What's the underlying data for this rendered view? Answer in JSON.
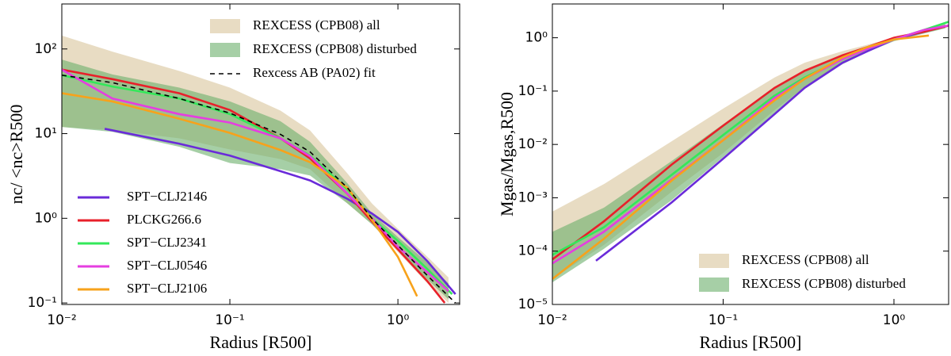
{
  "chart_data": [
    {
      "type": "line",
      "xlabel": "Radius  [R500]",
      "ylabel": "nc/ <nc>R500",
      "log_x": true,
      "log_y": true,
      "xlim": [
        0.01,
        2.33
      ],
      "ylim": [
        0.096,
        340
      ],
      "xticks": [
        {
          "value": 0.01,
          "label": "10⁻²"
        },
        {
          "value": 0.1,
          "label": "10⁻¹"
        },
        {
          "value": 1,
          "label": "10⁰"
        }
      ],
      "yticks": [
        {
          "value": 0.1,
          "label": "10⁻¹"
        },
        {
          "value": 1,
          "label": "10⁰"
        },
        {
          "value": 10,
          "label": "10¹"
        },
        {
          "value": 100,
          "label": "10²"
        }
      ],
      "legend": {
        "bands": "upper right",
        "lines": "lower left"
      },
      "bands": [
        {
          "name": "REXCESS (CPB08) all",
          "color": "#d9c49b",
          "x": [
            0.01,
            0.02,
            0.05,
            0.1,
            0.2,
            0.3,
            0.5,
            0.7,
            1,
            1.5,
            2
          ],
          "upper": [
            144,
            93,
            55,
            35,
            18.7,
            10.9,
            3.4,
            1.5,
            0.75,
            0.35,
            0.2
          ],
          "lower": [
            12,
            11,
            8.8,
            6.5,
            5,
            3.8,
            1.5,
            0.85,
            0.4,
            0.17,
            0.1
          ]
        },
        {
          "name": "REXCESS (CPB08) disturbed",
          "color": "#6aaf6a",
          "x": [
            0.01,
            0.02,
            0.05,
            0.1,
            0.2,
            0.3,
            0.5,
            0.7,
            1,
            1.5,
            2
          ],
          "upper": [
            75,
            50,
            35,
            24,
            14,
            8,
            2.6,
            1.15,
            0.6,
            0.3,
            0.17
          ],
          "lower": [
            12,
            10.5,
            7,
            4.5,
            3.8,
            3.2,
            1.5,
            0.85,
            0.42,
            0.19,
            0.11
          ]
        }
      ],
      "series": [
        {
          "name": "SPT−CLJ2146",
          "color": "#6a2bd9",
          "x": [
            0.018,
            0.05,
            0.1,
            0.2,
            0.3,
            0.5,
            0.7,
            1,
            1.5,
            2.2
          ],
          "values": [
            11.4,
            7.6,
            5.5,
            3.6,
            2.8,
            1.7,
            1.14,
            0.69,
            0.31,
            0.127
          ]
        },
        {
          "name": "PLCKG266.6",
          "color": "#e8202a",
          "x": [
            0.01,
            0.02,
            0.05,
            0.1,
            0.2,
            0.3,
            0.5,
            0.7,
            1,
            1.5,
            1.9
          ],
          "values": [
            57,
            44,
            30,
            19,
            8.8,
            5.1,
            1.95,
            0.92,
            0.43,
            0.18,
            0.1
          ]
        },
        {
          "name": "SPT−CLJ2341",
          "color": "#33e85a",
          "x": [
            0.01,
            0.02,
            0.05,
            0.1,
            0.2,
            0.3,
            0.5,
            0.7,
            1,
            1.5,
            2.1
          ],
          "values": [
            49,
            36,
            26,
            17,
            8.8,
            5.5,
            2.2,
            1.0,
            0.54,
            0.25,
            0.127
          ]
        },
        {
          "name": "SPT−CLJ0546",
          "color": "#e53ee0",
          "x": [
            0.01,
            0.02,
            0.05,
            0.1,
            0.2,
            0.3,
            0.5,
            0.7,
            1,
            1.5,
            2.0
          ],
          "values": [
            57,
            26,
            17,
            13.5,
            8.8,
            5.4,
            1.95,
            1.0,
            0.46,
            0.23,
            0.138
          ]
        },
        {
          "name": "SPT−CLJ2106",
          "color": "#f7a21b",
          "x": [
            0.01,
            0.02,
            0.05,
            0.1,
            0.2,
            0.3,
            0.5,
            0.7,
            1,
            1.3
          ],
          "values": [
            30,
            24,
            15,
            10.2,
            6.4,
            4.6,
            2.3,
            0.96,
            0.35,
            0.12
          ]
        },
        {
          "name": "Rexcess AB (PA02) fit",
          "color": "#000000",
          "dash": true,
          "x": [
            0.01,
            0.02,
            0.05,
            0.1,
            0.2,
            0.3,
            0.5,
            0.7,
            1,
            1.5,
            2.2
          ],
          "values": [
            49,
            40,
            26,
            17.5,
            9.8,
            6.1,
            2.3,
            1.0,
            0.48,
            0.21,
            0.1
          ]
        }
      ]
    },
    {
      "type": "line",
      "xlabel": "Radius  [R500]",
      "ylabel": "Mgas/Mgas,R500",
      "log_x": true,
      "log_y": true,
      "xlim": [
        0.01,
        2.09
      ],
      "ylim": [
        1e-05,
        4.3
      ],
      "xticks": [
        {
          "value": 0.01,
          "label": "10⁻²"
        },
        {
          "value": 0.1,
          "label": "10⁻¹"
        },
        {
          "value": 1,
          "label": "10⁰"
        }
      ],
      "yticks": [
        {
          "value": 1e-05,
          "label": "10⁻⁵"
        },
        {
          "value": 0.0001,
          "label": "10⁻⁴"
        },
        {
          "value": 0.001,
          "label": "10⁻³"
        },
        {
          "value": 0.01,
          "label": "10⁻²"
        },
        {
          "value": 0.1,
          "label": "10⁻¹"
        },
        {
          "value": 1,
          "label": "10⁰"
        }
      ],
      "legend": {
        "bands": "lower right"
      },
      "bands": [
        {
          "name": "REXCESS (CPB08) all",
          "color": "#d9c49b",
          "x": [
            0.01,
            0.02,
            0.05,
            0.1,
            0.2,
            0.3,
            0.5,
            0.7,
            1,
            1.5,
            2
          ],
          "upper": [
            0.00055,
            0.0018,
            0.0115,
            0.047,
            0.18,
            0.34,
            0.56,
            0.74,
            1.0,
            1.4,
            1.8
          ],
          "lower": [
            3e-05,
            0.00013,
            0.0013,
            0.0069,
            0.044,
            0.12,
            0.34,
            0.58,
            0.93,
            1.2,
            1.55
          ]
        },
        {
          "name": "REXCESS (CPB08) disturbed",
          "color": "#6aaf6a",
          "x": [
            0.01,
            0.02,
            0.05,
            0.1,
            0.2,
            0.3,
            0.5,
            0.7,
            1,
            1.5,
            2
          ],
          "upper": [
            0.00023,
            0.00065,
            0.0049,
            0.024,
            0.115,
            0.24,
            0.47,
            0.67,
            1.0,
            1.4,
            1.8
          ],
          "lower": [
            2.6e-05,
            0.00011,
            0.0009,
            0.0058,
            0.037,
            0.115,
            0.32,
            0.54,
            0.86,
            1.2,
            1.5
          ]
        }
      ],
      "series": [
        {
          "name": "SPT−CLJ2146",
          "color": "#6a2bd9",
          "x": [
            0.018,
            0.05,
            0.1,
            0.2,
            0.3,
            0.5,
            0.7,
            1,
            1.5,
            2.1
          ],
          "values": [
            6.6e-05,
            0.00082,
            0.0054,
            0.037,
            0.115,
            0.34,
            0.56,
            0.93,
            1.3,
            1.7
          ]
        },
        {
          "name": "PLCKG266.6",
          "color": "#e8202a",
          "x": [
            0.01,
            0.02,
            0.05,
            0.1,
            0.2,
            0.3,
            0.5,
            0.7,
            1,
            1.5,
            2.1
          ],
          "values": [
            7e-05,
            0.00036,
            0.0042,
            0.0225,
            0.115,
            0.24,
            0.47,
            0.67,
            1.0,
            1.3,
            1.7
          ]
        },
        {
          "name": "SPT−CLJ2341",
          "color": "#33e85a",
          "x": [
            0.01,
            0.02,
            0.05,
            0.1,
            0.2,
            0.3,
            0.5,
            0.7,
            1,
            1.5,
            2.1
          ],
          "values": [
            8.5e-05,
            0.00028,
            0.0027,
            0.015,
            0.082,
            0.18,
            0.4,
            0.62,
            0.93,
            1.4,
            2.0
          ]
        },
        {
          "name": "SPT−CLJ0546",
          "color": "#e53ee0",
          "x": [
            0.01,
            0.02,
            0.05,
            0.1,
            0.2,
            0.3,
            0.5,
            0.7,
            1,
            1.5,
            2.1
          ],
          "values": [
            5.9e-05,
            0.00023,
            0.0022,
            0.012,
            0.074,
            0.17,
            0.4,
            0.62,
            0.93,
            1.4,
            1.7
          ]
        },
        {
          "name": "SPT−CLJ2106",
          "color": "#f7a21b",
          "x": [
            0.01,
            0.02,
            0.05,
            0.1,
            0.2,
            0.3,
            0.5,
            0.7,
            1,
            1.6
          ],
          "values": [
            3e-05,
            0.00017,
            0.0021,
            0.012,
            0.067,
            0.17,
            0.43,
            0.67,
            0.93,
            1.1
          ]
        }
      ]
    }
  ]
}
